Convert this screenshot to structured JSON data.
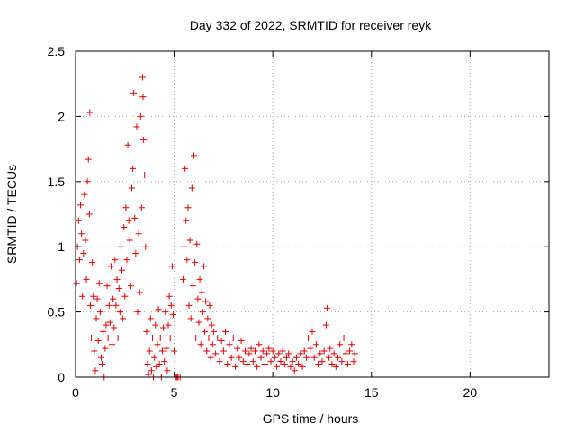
{
  "chart_data": {
    "type": "scatter",
    "title": "Day 332 of 2022, SRMTID for receiver reyk",
    "xlabel": "GPS time / hours",
    "ylabel": "SRMTID / TECUs",
    "xlim": [
      0,
      24
    ],
    "ylim": [
      0,
      2.5
    ],
    "xticks": [
      0,
      5,
      10,
      15,
      20
    ],
    "xtick_labels": [
      "0",
      "5",
      "10",
      "15",
      "20"
    ],
    "yticks": [
      0,
      0.5,
      1,
      1.5,
      2,
      2.5
    ],
    "ytick_labels": [
      "0",
      "0.5",
      "1",
      "1.5",
      "2",
      "2.5"
    ],
    "grid": true,
    "marker": "+",
    "series": [
      {
        "name": "reyk",
        "color": "#e00000",
        "points": [
          [
            0.05,
            0.72
          ],
          [
            0.1,
            1.0
          ],
          [
            0.15,
            1.2
          ],
          [
            0.2,
            0.9
          ],
          [
            0.25,
            1.32
          ],
          [
            0.3,
            1.1
          ],
          [
            0.35,
            0.62
          ],
          [
            0.4,
            0.95
          ],
          [
            0.45,
            1.4
          ],
          [
            0.5,
            1.05
          ],
          [
            0.55,
            0.75
          ],
          [
            0.6,
            1.5
          ],
          [
            0.65,
            1.67
          ],
          [
            0.7,
            1.25
          ],
          [
            0.72,
            2.03
          ],
          [
            0.75,
            0.55
          ],
          [
            0.8,
            0.3
          ],
          [
            0.85,
            0.88
          ],
          [
            0.9,
            0.62
          ],
          [
            0.95,
            0.2
          ],
          [
            1.0,
            0.05
          ],
          [
            1.05,
            0.45
          ],
          [
            1.1,
            0.6
          ],
          [
            1.15,
            0.28
          ],
          [
            1.2,
            0.72
          ],
          [
            1.25,
            0.5
          ],
          [
            1.3,
            0.15
          ],
          [
            1.35,
            0.1
          ],
          [
            1.4,
            0.35
          ],
          [
            1.45,
            0.0
          ],
          [
            1.5,
            0.22
          ],
          [
            1.55,
            0.4
          ],
          [
            1.6,
            0.7
          ],
          [
            1.65,
            0.3
          ],
          [
            1.7,
            0.55
          ],
          [
            1.75,
            0.42
          ],
          [
            1.8,
            0.85
          ],
          [
            1.85,
            0.25
          ],
          [
            1.9,
            0.6
          ],
          [
            1.95,
            0.38
          ],
          [
            2.0,
            0.9
          ],
          [
            2.05,
            0.55
          ],
          [
            2.1,
            0.75
          ],
          [
            2.15,
            0.3
          ],
          [
            2.2,
            0.68
          ],
          [
            2.25,
            0.5
          ],
          [
            2.3,
            1.0
          ],
          [
            2.35,
            0.82
          ],
          [
            2.4,
            0.45
          ],
          [
            2.45,
            1.15
          ],
          [
            2.5,
            0.62
          ],
          [
            2.55,
            1.3
          ],
          [
            2.6,
            0.9
          ],
          [
            2.65,
            1.78
          ],
          [
            2.7,
            1.2
          ],
          [
            2.75,
            1.05
          ],
          [
            2.8,
            0.7
          ],
          [
            2.85,
            1.45
          ],
          [
            2.9,
            1.6
          ],
          [
            2.95,
            2.18
          ],
          [
            3.0,
            1.22
          ],
          [
            3.05,
            0.95
          ],
          [
            3.1,
            1.92
          ],
          [
            3.15,
            0.5
          ],
          [
            3.2,
            1.1
          ],
          [
            3.25,
            0.65
          ],
          [
            3.3,
            2.0
          ],
          [
            3.35,
            1.3
          ],
          [
            3.4,
            2.3
          ],
          [
            3.42,
            2.15
          ],
          [
            3.45,
            1.82
          ],
          [
            3.5,
            1.55
          ],
          [
            3.55,
            1.0
          ],
          [
            3.6,
            0.35
          ],
          [
            3.65,
            0.1
          ],
          [
            3.7,
            0.02
          ],
          [
            3.75,
            0.2
          ],
          [
            3.8,
            0.45
          ],
          [
            3.85,
            0.05
          ],
          [
            3.9,
            0.3
          ],
          [
            3.95,
            0.0
          ],
          [
            4.0,
            0.15
          ],
          [
            4.05,
            0.4
          ],
          [
            4.1,
            0.08
          ],
          [
            4.15,
            0.25
          ],
          [
            4.2,
            0.52
          ],
          [
            4.25,
            0.1
          ],
          [
            4.3,
            0.3
          ],
          [
            4.35,
            0.0
          ],
          [
            4.4,
            0.2
          ],
          [
            4.45,
            0.38
          ],
          [
            4.5,
            0.12
          ],
          [
            4.55,
            0.5
          ],
          [
            4.6,
            0.22
          ],
          [
            4.65,
            0.05
          ],
          [
            4.7,
            0.4
          ],
          [
            4.75,
            0.62
          ],
          [
            4.8,
            0.3
          ],
          [
            4.85,
            0.55
          ],
          [
            4.9,
            0.85
          ],
          [
            4.95,
            0.48
          ],
          [
            5.0,
            0.2
          ],
          [
            5.1,
            0.0
          ],
          [
            5.15,
            0.0
          ],
          [
            5.2,
            0.0
          ],
          [
            5.3,
            0.0
          ],
          [
            5.45,
            0.75
          ],
          [
            5.5,
            1.0
          ],
          [
            5.55,
            1.6
          ],
          [
            5.6,
            1.2
          ],
          [
            5.65,
            0.9
          ],
          [
            5.7,
            1.3
          ],
          [
            5.75,
            0.55
          ],
          [
            5.8,
            1.05
          ],
          [
            5.85,
            0.45
          ],
          [
            5.9,
            1.45
          ],
          [
            5.95,
            0.7
          ],
          [
            6.0,
            1.7
          ],
          [
            6.05,
            0.88
          ],
          [
            6.1,
            0.3
          ],
          [
            6.15,
            1.02
          ],
          [
            6.2,
            0.6
          ],
          [
            6.25,
            0.42
          ],
          [
            6.3,
            0.75
          ],
          [
            6.35,
            0.25
          ],
          [
            6.4,
            0.65
          ],
          [
            6.45,
            0.5
          ],
          [
            6.5,
            0.85
          ],
          [
            6.55,
            0.35
          ],
          [
            6.6,
            0.58
          ],
          [
            6.65,
            0.2
          ],
          [
            6.7,
            0.45
          ],
          [
            6.75,
            0.3
          ],
          [
            6.8,
            0.55
          ],
          [
            6.85,
            0.15
          ],
          [
            6.9,
            0.4
          ],
          [
            6.95,
            0.25
          ],
          [
            7.0,
            0.35
          ],
          [
            7.1,
            0.18
          ],
          [
            7.2,
            0.3
          ],
          [
            7.3,
            0.12
          ],
          [
            7.4,
            0.28
          ],
          [
            7.5,
            0.2
          ],
          [
            7.6,
            0.35
          ],
          [
            7.7,
            0.1
          ],
          [
            7.8,
            0.25
          ],
          [
            7.9,
            0.15
          ],
          [
            8.0,
            0.3
          ],
          [
            8.1,
            0.08
          ],
          [
            8.2,
            0.22
          ],
          [
            8.3,
            0.15
          ],
          [
            8.4,
            0.28
          ],
          [
            8.5,
            0.12
          ],
          [
            8.6,
            0.2
          ],
          [
            8.7,
            0.1
          ],
          [
            8.8,
            0.18
          ],
          [
            8.9,
            0.22
          ],
          [
            9.0,
            0.12
          ],
          [
            9.1,
            0.2
          ],
          [
            9.2,
            0.08
          ],
          [
            9.3,
            0.25
          ],
          [
            9.4,
            0.15
          ],
          [
            9.5,
            0.2
          ],
          [
            9.6,
            0.1
          ],
          [
            9.7,
            0.18
          ],
          [
            9.8,
            0.22
          ],
          [
            9.9,
            0.12
          ],
          [
            10.0,
            0.2
          ],
          [
            10.1,
            0.15
          ],
          [
            10.2,
            0.08
          ],
          [
            10.3,
            0.18
          ],
          [
            10.4,
            0.12
          ],
          [
            10.5,
            0.2
          ],
          [
            10.6,
            0.1
          ],
          [
            10.7,
            0.15
          ],
          [
            10.8,
            0.18
          ],
          [
            10.9,
            0.08
          ],
          [
            11.0,
            0.12
          ],
          [
            11.1,
            0.05
          ],
          [
            11.2,
            0.15
          ],
          [
            11.3,
            0.1
          ],
          [
            11.4,
            0.18
          ],
          [
            11.5,
            0.08
          ],
          [
            11.6,
            0.2
          ],
          [
            11.7,
            0.15
          ],
          [
            11.8,
            0.3
          ],
          [
            11.9,
            0.22
          ],
          [
            12.0,
            0.35
          ],
          [
            12.1,
            0.15
          ],
          [
            12.2,
            0.25
          ],
          [
            12.3,
            0.1
          ],
          [
            12.4,
            0.18
          ],
          [
            12.5,
            0.12
          ],
          [
            12.6,
            0.2
          ],
          [
            12.7,
            0.4
          ],
          [
            12.75,
            0.53
          ],
          [
            12.8,
            0.3
          ],
          [
            12.85,
            0.15
          ],
          [
            12.9,
            0.22
          ],
          [
            13.0,
            0.1
          ],
          [
            13.1,
            0.18
          ],
          [
            13.2,
            0.08
          ],
          [
            13.3,
            0.15
          ],
          [
            13.4,
            0.25
          ],
          [
            13.5,
            0.12
          ],
          [
            13.6,
            0.3
          ],
          [
            13.7,
            0.18
          ],
          [
            13.8,
            0.1
          ],
          [
            13.9,
            0.2
          ],
          [
            14.0,
            0.25
          ],
          [
            14.1,
            0.12
          ],
          [
            14.15,
            0.18
          ]
        ]
      }
    ]
  }
}
